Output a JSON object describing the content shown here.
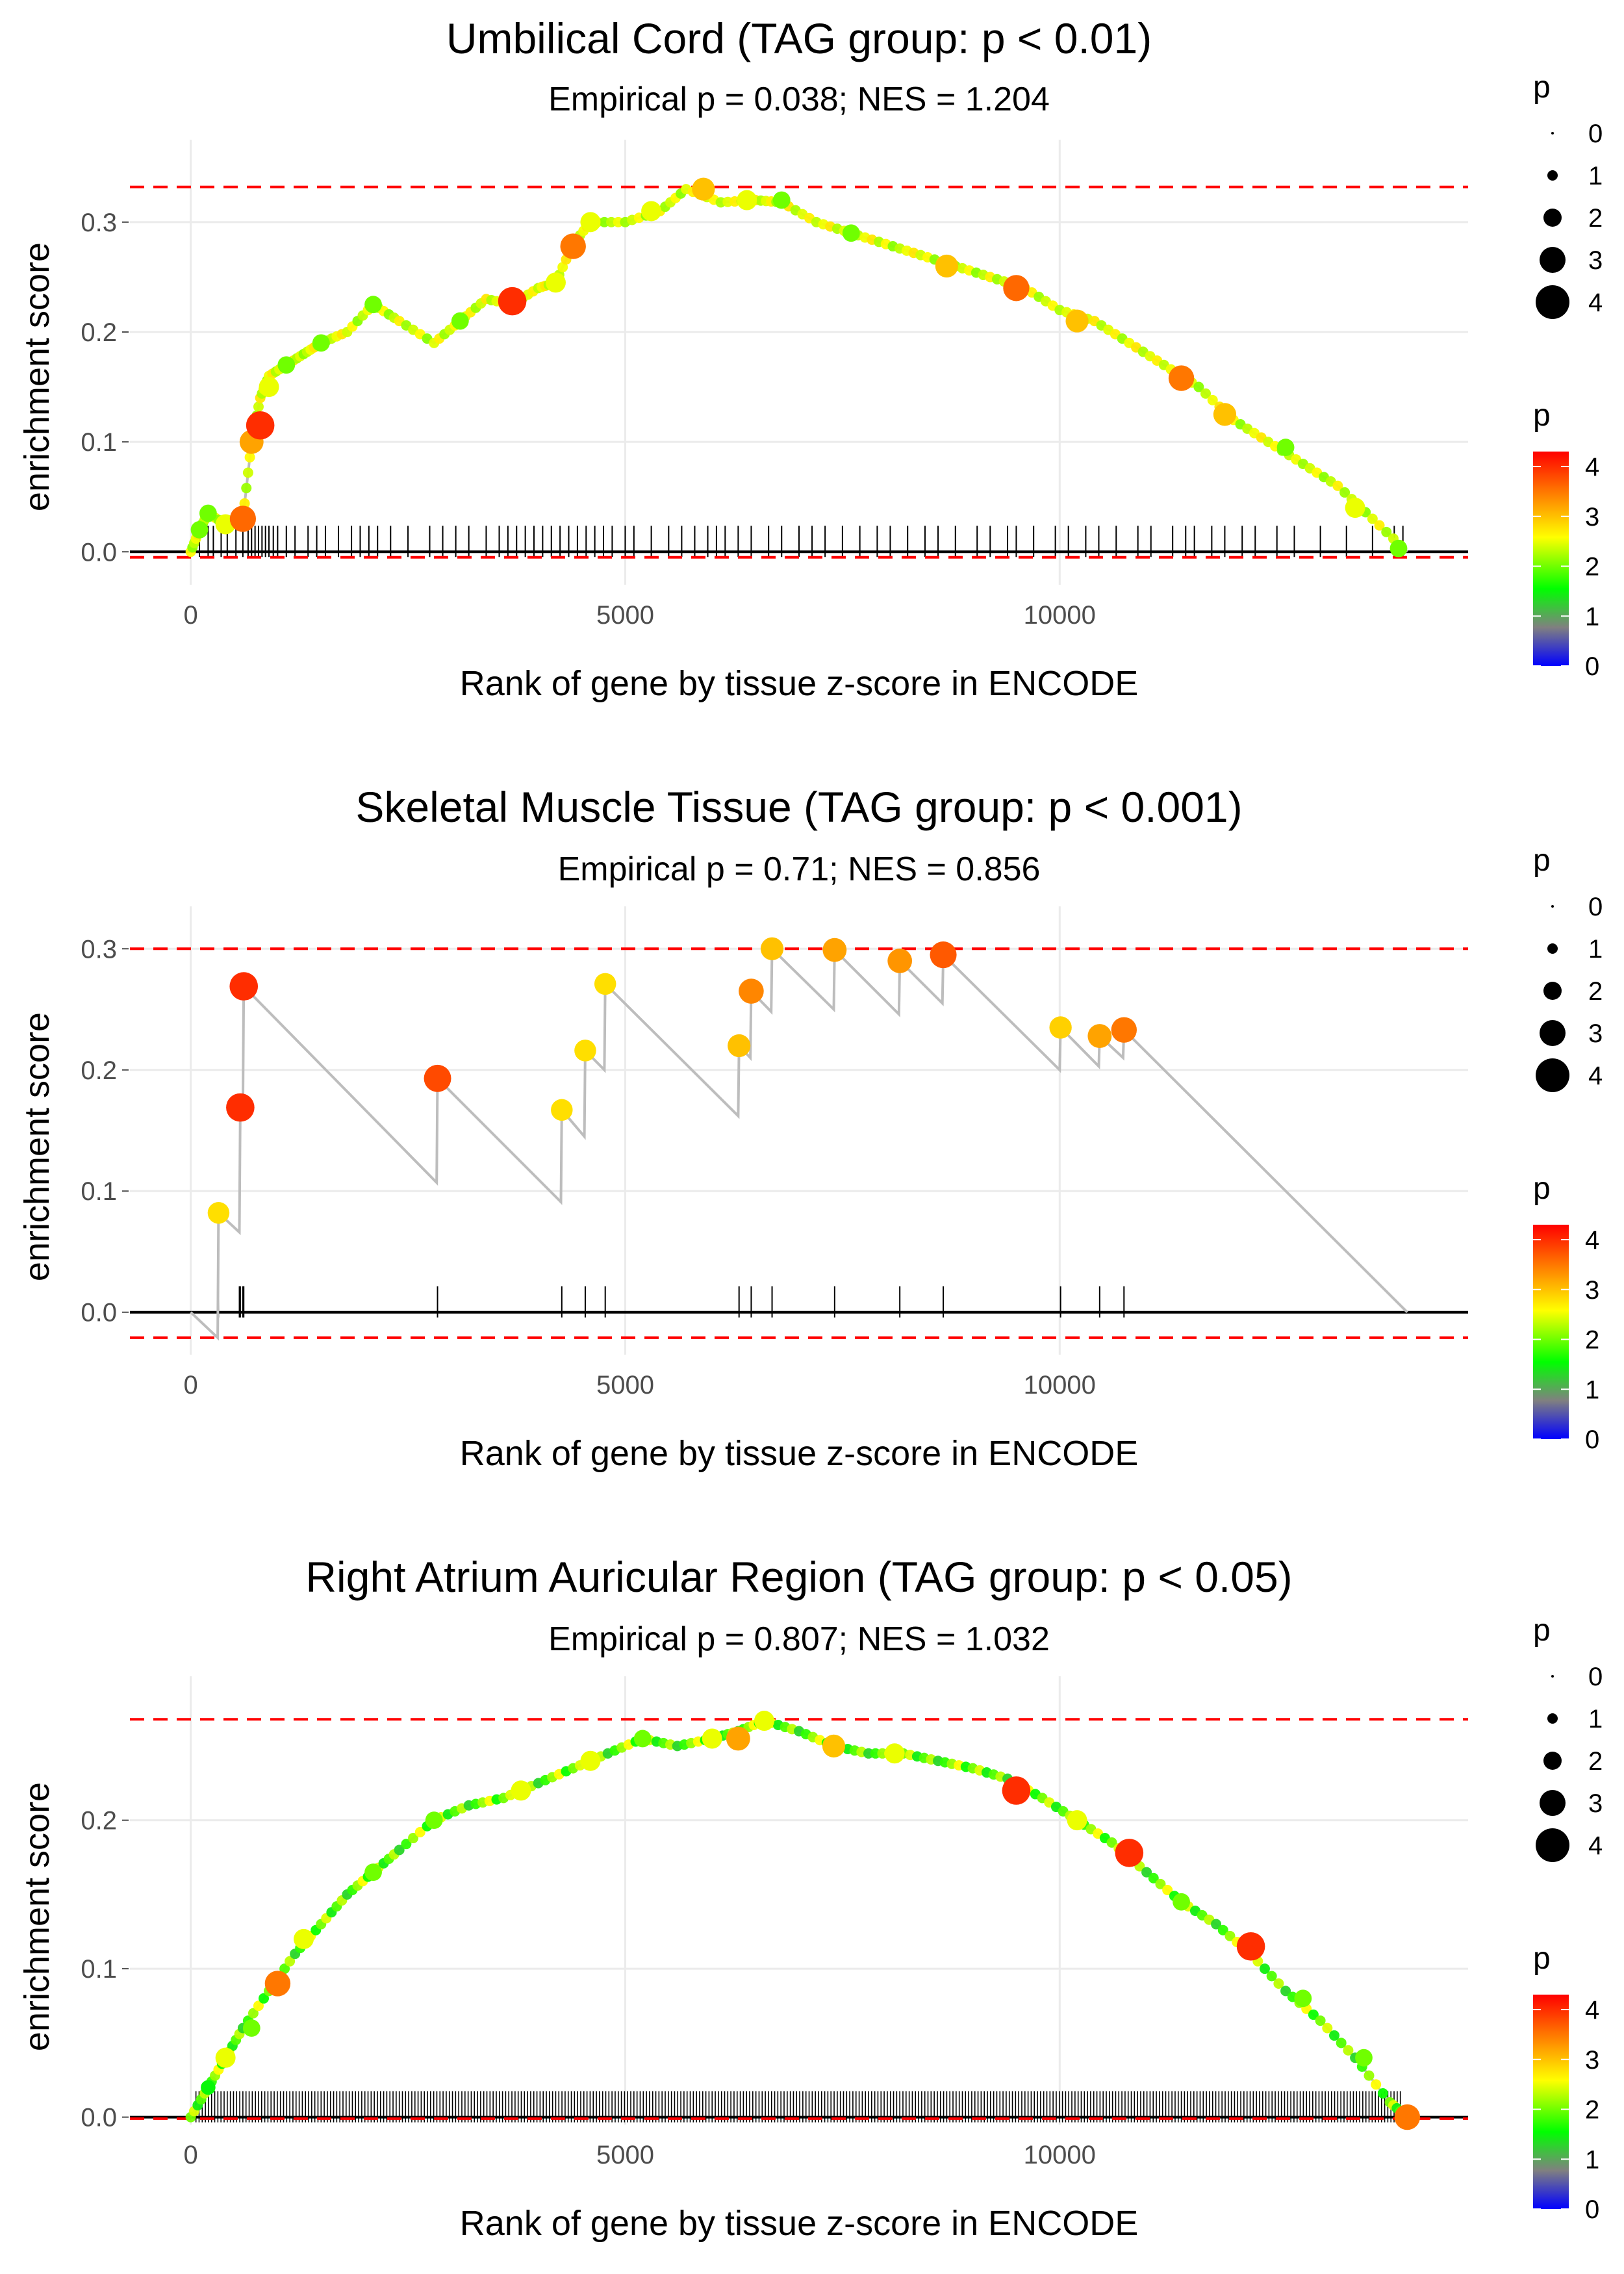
{
  "colors": {
    "threshold": "#ff0000",
    "es_line": "#bdbdbd",
    "grid": "#ebebeb",
    "axis": "#000000",
    "gene_tick": "#000000",
    "text_dark": "#000000",
    "text_muted": "#4d4d4d",
    "gradient": [
      "#0000ff",
      "#808080",
      "#00ff00",
      "#ffff00",
      "#ff8000",
      "#ff0000"
    ]
  },
  "chart_data": [
    {
      "type": "line",
      "title": "Umbilical Cord (TAG group: p < 0.01)",
      "subtitle": "Empirical p = 0.038; NES = 1.204",
      "xlabel": "Rank of gene by tissue z-score in ENCODE",
      "ylabel": "enrichment score",
      "xlim": [
        -700,
        14700
      ],
      "ylim": [
        -0.03,
        0.375
      ],
      "x_ticks": [
        0,
        5000,
        10000
      ],
      "x_tick_labels": [
        "0",
        "5000",
        "10000"
      ],
      "y_ticks": [
        0.0,
        0.1,
        0.2,
        0.3
      ],
      "y_tick_labels": [
        "0.0",
        "0.1",
        "0.2",
        "0.3"
      ],
      "threshold_upper": 0.332,
      "threshold_lower": -0.005,
      "legend_size": {
        "title": "p",
        "labels": [
          "0",
          "1",
          "2",
          "3",
          "4"
        ]
      },
      "legend_color": {
        "title": "p",
        "labels": [
          "4",
          "3",
          "2",
          "1",
          "0"
        ],
        "range": [
          0,
          4.3
        ]
      },
      "curve": [
        [
          0,
          0
        ],
        [
          100,
          0.02
        ],
        [
          200,
          0.035
        ],
        [
          400,
          0.025
        ],
        [
          600,
          0.03
        ],
        [
          700,
          0.1
        ],
        [
          800,
          0.14
        ],
        [
          900,
          0.16
        ],
        [
          1100,
          0.17
        ],
        [
          1300,
          0.18
        ],
        [
          1500,
          0.19
        ],
        [
          1800,
          0.2
        ],
        [
          2100,
          0.225
        ],
        [
          2400,
          0.21
        ],
        [
          2800,
          0.19
        ],
        [
          3100,
          0.21
        ],
        [
          3400,
          0.23
        ],
        [
          3700,
          0.225
        ],
        [
          4000,
          0.24
        ],
        [
          4200,
          0.245
        ],
        [
          4400,
          0.28
        ],
        [
          4600,
          0.3
        ],
        [
          5000,
          0.3
        ],
        [
          5400,
          0.31
        ],
        [
          5700,
          0.33
        ],
        [
          6100,
          0.318
        ],
        [
          6500,
          0.32
        ],
        [
          6800,
          0.318
        ],
        [
          7200,
          0.3
        ],
        [
          7600,
          0.29
        ],
        [
          8000,
          0.28
        ],
        [
          8400,
          0.27
        ],
        [
          8800,
          0.26
        ],
        [
          9200,
          0.25
        ],
        [
          9600,
          0.24
        ],
        [
          10000,
          0.22
        ],
        [
          10400,
          0.21
        ],
        [
          10800,
          0.19
        ],
        [
          11200,
          0.17
        ],
        [
          11600,
          0.15
        ],
        [
          12000,
          0.12
        ],
        [
          12400,
          0.1
        ],
        [
          12800,
          0.08
        ],
        [
          13200,
          0.06
        ],
        [
          13600,
          0.03
        ],
        [
          14000,
          0.0
        ]
      ],
      "points": [
        [
          100,
          0.02,
          2
        ],
        [
          200,
          0.035,
          2
        ],
        [
          400,
          0.025,
          2.5
        ],
        [
          600,
          0.03,
          3.6
        ],
        [
          700,
          0.1,
          3.2
        ],
        [
          800,
          0.115,
          4
        ],
        [
          900,
          0.15,
          2.5
        ],
        [
          1100,
          0.17,
          2
        ],
        [
          1500,
          0.19,
          2
        ],
        [
          2100,
          0.225,
          2
        ],
        [
          3100,
          0.21,
          2
        ],
        [
          3700,
          0.228,
          4
        ],
        [
          4200,
          0.245,
          2.5
        ],
        [
          4400,
          0.278,
          3.5
        ],
        [
          4600,
          0.3,
          2.5
        ],
        [
          5300,
          0.31,
          2.5
        ],
        [
          5900,
          0.33,
          3
        ],
        [
          6400,
          0.32,
          2.5
        ],
        [
          6800,
          0.32,
          2
        ],
        [
          7600,
          0.29,
          2
        ],
        [
          8700,
          0.26,
          3
        ],
        [
          9500,
          0.24,
          3.6
        ],
        [
          10200,
          0.21,
          3
        ],
        [
          11400,
          0.158,
          3.5
        ],
        [
          11900,
          0.125,
          3
        ],
        [
          12600,
          0.095,
          2
        ],
        [
          13400,
          0.04,
          2.5
        ],
        [
          13900,
          0.003,
          2
        ]
      ],
      "gene_ticks": [
        100,
        200,
        260,
        350,
        420,
        520,
        600,
        660,
        700,
        740,
        780,
        820,
        860,
        900,
        950,
        1000,
        1100,
        1200,
        1350,
        1450,
        1550,
        1700,
        1850,
        1950,
        2050,
        2150,
        2300,
        2500,
        2750,
        2900,
        3050,
        3200,
        3400,
        3550,
        3650,
        3750,
        3850,
        3950,
        4050,
        4150,
        4250,
        4350,
        4450,
        4550,
        4650,
        4750,
        4850,
        5000,
        5100,
        5300,
        5500,
        5650,
        5800,
        5950,
        6050,
        6150,
        6300,
        6450,
        6650,
        6800,
        7000,
        7150,
        7300,
        7500,
        7700,
        7900,
        8050,
        8250,
        8450,
        8600,
        8800,
        9050,
        9200,
        9400,
        9500,
        9700,
        9950,
        10100,
        10300,
        10450,
        10650,
        10900,
        11050,
        11300,
        11450,
        11550,
        11750,
        11900,
        12100,
        12250,
        12500,
        12700,
        13000,
        13300,
        13600,
        13850,
        13950
      ]
    },
    {
      "type": "line",
      "title": "Skeletal Muscle Tissue (TAG group: p < 0.001)",
      "subtitle": "Empirical p = 0.71; NES = 0.856",
      "xlabel": "Rank of gene by tissue z-score in ENCODE",
      "ylabel": "enrichment score",
      "xlim": [
        -700,
        14700
      ],
      "ylim": [
        -0.035,
        0.335
      ],
      "x_ticks": [
        0,
        5000,
        10000
      ],
      "x_tick_labels": [
        "0",
        "5000",
        "10000"
      ],
      "y_ticks": [
        0.0,
        0.1,
        0.2,
        0.3
      ],
      "y_tick_labels": [
        "0.0",
        "0.1",
        "0.2",
        "0.3"
      ],
      "threshold_upper": 0.3,
      "threshold_lower": -0.021,
      "legend_size": {
        "title": "p",
        "labels": [
          "0",
          "1",
          "2",
          "3",
          "4"
        ]
      },
      "legend_color": {
        "title": "p",
        "labels": [
          "4",
          "3",
          "2",
          "1",
          "0"
        ],
        "range": [
          0,
          4.3
        ]
      },
      "curve": [
        [
          0,
          0
        ],
        [
          310,
          -0.021
        ],
        [
          320,
          0.082
        ],
        [
          560,
          0.066
        ],
        [
          570,
          0.169
        ],
        [
          600,
          0.168
        ],
        [
          610,
          0.269
        ],
        [
          2830,
          0.107
        ],
        [
          2840,
          0.193
        ],
        [
          4260,
          0.091
        ],
        [
          4270,
          0.167
        ],
        [
          4530,
          0.145
        ],
        [
          4540,
          0.216
        ],
        [
          4760,
          0.2
        ],
        [
          4770,
          0.271
        ],
        [
          6300,
          0.162
        ],
        [
          6310,
          0.22
        ],
        [
          6440,
          0.21
        ],
        [
          6450,
          0.265
        ],
        [
          6680,
          0.248
        ],
        [
          6690,
          0.3
        ],
        [
          7400,
          0.25
        ],
        [
          7410,
          0.299
        ],
        [
          8150,
          0.246
        ],
        [
          8160,
          0.29
        ],
        [
          8650,
          0.255
        ],
        [
          8660,
          0.295
        ],
        [
          10000,
          0.2
        ],
        [
          10010,
          0.235
        ],
        [
          10450,
          0.203
        ],
        [
          10460,
          0.228
        ],
        [
          10730,
          0.21
        ],
        [
          10740,
          0.233
        ],
        [
          14000,
          0
        ]
      ],
      "points": [
        [
          320,
          0.082,
          2.8
        ],
        [
          570,
          0.169,
          4
        ],
        [
          610,
          0.269,
          4
        ],
        [
          2840,
          0.193,
          3.8
        ],
        [
          4270,
          0.167,
          2.8
        ],
        [
          4540,
          0.216,
          2.8
        ],
        [
          4770,
          0.271,
          2.8
        ],
        [
          6310,
          0.22,
          3
        ],
        [
          6450,
          0.265,
          3.4
        ],
        [
          6690,
          0.3,
          3
        ],
        [
          7410,
          0.299,
          3.2
        ],
        [
          8160,
          0.29,
          3.3
        ],
        [
          8660,
          0.295,
          3.7
        ],
        [
          10010,
          0.235,
          2.9
        ],
        [
          10460,
          0.228,
          3.2
        ],
        [
          10740,
          0.233,
          3.5
        ]
      ],
      "gene_ticks": [
        320,
        560,
        570,
        600,
        610,
        2840,
        4270,
        4540,
        4770,
        6310,
        6450,
        6690,
        7410,
        8160,
        8660,
        10010,
        10460,
        10740
      ]
    },
    {
      "type": "line",
      "title": "Right Atrium Auricular Region (TAG group: p < 0.05)",
      "subtitle": "Empirical p = 0.807; NES = 1.032",
      "xlabel": "Rank of gene by tissue z-score in ENCODE",
      "ylabel": "enrichment score",
      "xlim": [
        -700,
        14700
      ],
      "ylim": [
        -0.005,
        0.297
      ],
      "x_ticks": [
        0,
        5000,
        10000
      ],
      "x_tick_labels": [
        "0",
        "5000",
        "10000"
      ],
      "y_ticks": [
        0.0,
        0.1,
        0.2
      ],
      "y_tick_labels": [
        "0.0",
        "0.1",
        "0.2"
      ],
      "threshold_upper": 0.268,
      "threshold_lower": -0.001,
      "legend_size": {
        "title": "p",
        "labels": [
          "0",
          "1",
          "2",
          "3",
          "4"
        ]
      },
      "legend_color": {
        "title": "p",
        "labels": [
          "4",
          "3",
          "2",
          "1",
          "0"
        ],
        "range": [
          0,
          4.3
        ]
      },
      "curve": [
        [
          0,
          0
        ],
        [
          200,
          0.02
        ],
        [
          400,
          0.04
        ],
        [
          600,
          0.06
        ],
        [
          900,
          0.085
        ],
        [
          1200,
          0.11
        ],
        [
          1500,
          0.13
        ],
        [
          1800,
          0.15
        ],
        [
          2100,
          0.165
        ],
        [
          2400,
          0.18
        ],
        [
          2800,
          0.2
        ],
        [
          3200,
          0.21
        ],
        [
          3600,
          0.215
        ],
        [
          4000,
          0.225
        ],
        [
          4400,
          0.235
        ],
        [
          4800,
          0.245
        ],
        [
          5200,
          0.255
        ],
        [
          5600,
          0.25
        ],
        [
          6000,
          0.255
        ],
        [
          6300,
          0.26
        ],
        [
          6600,
          0.267
        ],
        [
          7000,
          0.26
        ],
        [
          7400,
          0.25
        ],
        [
          7800,
          0.245
        ],
        [
          8200,
          0.245
        ],
        [
          8600,
          0.24
        ],
        [
          9000,
          0.235
        ],
        [
          9400,
          0.228
        ],
        [
          9800,
          0.215
        ],
        [
          10200,
          0.2
        ],
        [
          10600,
          0.185
        ],
        [
          11000,
          0.165
        ],
        [
          11400,
          0.145
        ],
        [
          11800,
          0.13
        ],
        [
          12200,
          0.11
        ],
        [
          12600,
          0.085
        ],
        [
          13000,
          0.065
        ],
        [
          13400,
          0.04
        ],
        [
          13800,
          0.01
        ],
        [
          14000,
          0.0
        ]
      ],
      "points": [
        [
          200,
          0.02,
          1.5
        ],
        [
          400,
          0.04,
          2.5
        ],
        [
          700,
          0.06,
          2
        ],
        [
          1000,
          0.09,
          3.5
        ],
        [
          1300,
          0.12,
          2.5
        ],
        [
          2100,
          0.165,
          2
        ],
        [
          2800,
          0.2,
          2
        ],
        [
          3800,
          0.22,
          2.5
        ],
        [
          4600,
          0.24,
          2.5
        ],
        [
          5200,
          0.255,
          2
        ],
        [
          6000,
          0.255,
          2.5
        ],
        [
          6300,
          0.255,
          3.2
        ],
        [
          6600,
          0.267,
          2.5
        ],
        [
          7400,
          0.25,
          3
        ],
        [
          8100,
          0.245,
          2.5
        ],
        [
          9500,
          0.22,
          4
        ],
        [
          10200,
          0.2,
          2.5
        ],
        [
          10800,
          0.178,
          4
        ],
        [
          11400,
          0.145,
          2
        ],
        [
          12200,
          0.115,
          4
        ],
        [
          12800,
          0.08,
          2
        ],
        [
          13500,
          0.04,
          2
        ],
        [
          14000,
          0.0,
          3.5
        ]
      ],
      "gene_ticks": []
    }
  ]
}
